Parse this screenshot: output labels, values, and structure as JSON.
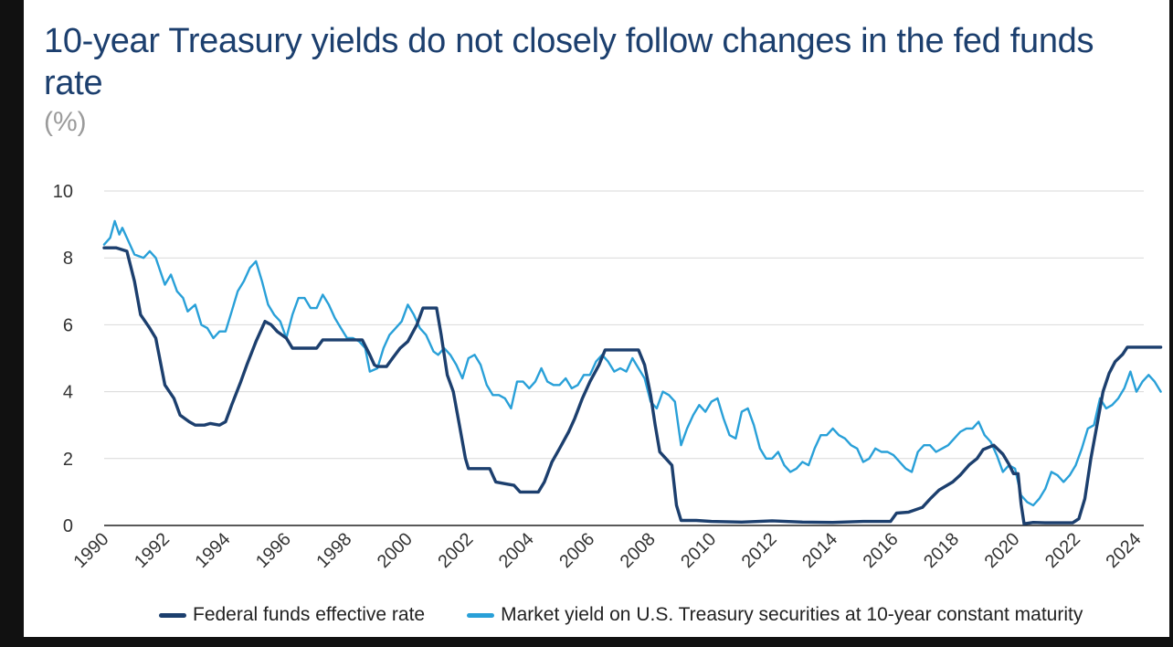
{
  "title": "10-year Treasury yields do not closely follow changes in the fed funds rate",
  "unit_label": "(%)",
  "colors": {
    "fed_funds": "#1c3f6e",
    "treasury": "#29a0d8",
    "grid": "#d9d9d9",
    "axis": "#222222"
  },
  "legend": {
    "fed_funds_label": "Federal funds effective rate",
    "treasury_label": "Market yield on U.S. Treasury securities at 10-year constant maturity"
  },
  "chart_data": {
    "type": "line",
    "title": "10-year Treasury yields do not closely follow changes in the fed funds rate",
    "ylabel": "(%)",
    "xlabel": "",
    "xlim": [
      1990,
      2024
    ],
    "ylim": [
      0,
      10
    ],
    "y_ticks": [
      0,
      2,
      4,
      6,
      8,
      10
    ],
    "x_ticks": [
      "1990",
      "1992",
      "1994",
      "1996",
      "1998",
      "2000",
      "2002",
      "2004",
      "2006",
      "2008",
      "2010",
      "2012",
      "2014",
      "2016",
      "2018",
      "2020",
      "2022",
      "2024"
    ],
    "grid": true,
    "legend_position": "bottom",
    "series": [
      {
        "name": "Federal funds effective rate",
        "color_key": "fed_funds",
        "points": [
          [
            1990.0,
            8.3
          ],
          [
            1990.4,
            8.3
          ],
          [
            1990.75,
            8.2
          ],
          [
            1991.0,
            7.3
          ],
          [
            1991.2,
            6.3
          ],
          [
            1991.5,
            5.9
          ],
          [
            1991.7,
            5.6
          ],
          [
            1992.0,
            4.2
          ],
          [
            1992.3,
            3.8
          ],
          [
            1992.5,
            3.3
          ],
          [
            1992.8,
            3.1
          ],
          [
            1993.0,
            3.0
          ],
          [
            1993.3,
            3.0
          ],
          [
            1993.5,
            3.05
          ],
          [
            1993.8,
            3.0
          ],
          [
            1994.0,
            3.1
          ],
          [
            1994.2,
            3.6
          ],
          [
            1994.5,
            4.3
          ],
          [
            1994.7,
            4.8
          ],
          [
            1995.0,
            5.5
          ],
          [
            1995.3,
            6.1
          ],
          [
            1995.5,
            6.0
          ],
          [
            1995.7,
            5.8
          ],
          [
            1996.0,
            5.6
          ],
          [
            1996.2,
            5.3
          ],
          [
            1996.5,
            5.3
          ],
          [
            1996.8,
            5.3
          ],
          [
            1997.0,
            5.3
          ],
          [
            1997.2,
            5.55
          ],
          [
            1997.5,
            5.55
          ],
          [
            1998.0,
            5.55
          ],
          [
            1998.5,
            5.55
          ],
          [
            1998.75,
            5.1
          ],
          [
            1998.9,
            4.8
          ],
          [
            1999.0,
            4.75
          ],
          [
            1999.3,
            4.75
          ],
          [
            1999.5,
            5.0
          ],
          [
            1999.75,
            5.3
          ],
          [
            2000.0,
            5.5
          ],
          [
            2000.3,
            6.0
          ],
          [
            2000.5,
            6.5
          ],
          [
            2000.75,
            6.5
          ],
          [
            2000.95,
            6.5
          ],
          [
            2001.1,
            5.7
          ],
          [
            2001.3,
            4.5
          ],
          [
            2001.5,
            4.0
          ],
          [
            2001.7,
            3.0
          ],
          [
            2001.9,
            2.0
          ],
          [
            2002.0,
            1.7
          ],
          [
            2002.3,
            1.7
          ],
          [
            2002.7,
            1.7
          ],
          [
            2002.9,
            1.3
          ],
          [
            2003.2,
            1.25
          ],
          [
            2003.5,
            1.2
          ],
          [
            2003.7,
            1.0
          ],
          [
            2004.0,
            1.0
          ],
          [
            2004.3,
            1.0
          ],
          [
            2004.5,
            1.3
          ],
          [
            2004.75,
            1.9
          ],
          [
            2005.0,
            2.3
          ],
          [
            2005.3,
            2.8
          ],
          [
            2005.5,
            3.2
          ],
          [
            2005.75,
            3.8
          ],
          [
            2006.0,
            4.3
          ],
          [
            2006.3,
            4.8
          ],
          [
            2006.5,
            5.25
          ],
          [
            2006.75,
            5.25
          ],
          [
            2007.0,
            5.25
          ],
          [
            2007.3,
            5.25
          ],
          [
            2007.6,
            5.25
          ],
          [
            2007.8,
            4.8
          ],
          [
            2008.0,
            3.9
          ],
          [
            2008.15,
            3.0
          ],
          [
            2008.3,
            2.2
          ],
          [
            2008.5,
            2.0
          ],
          [
            2008.7,
            1.8
          ],
          [
            2008.85,
            0.6
          ],
          [
            2009.0,
            0.15
          ],
          [
            2009.5,
            0.15
          ],
          [
            2010.0,
            0.12
          ],
          [
            2011.0,
            0.1
          ],
          [
            2012.0,
            0.14
          ],
          [
            2013.0,
            0.1
          ],
          [
            2014.0,
            0.09
          ],
          [
            2015.0,
            0.12
          ],
          [
            2015.9,
            0.12
          ],
          [
            2016.1,
            0.37
          ],
          [
            2016.5,
            0.4
          ],
          [
            2016.95,
            0.54
          ],
          [
            2017.2,
            0.79
          ],
          [
            2017.5,
            1.06
          ],
          [
            2017.95,
            1.3
          ],
          [
            2018.2,
            1.51
          ],
          [
            2018.5,
            1.82
          ],
          [
            2018.75,
            2.0
          ],
          [
            2018.95,
            2.27
          ],
          [
            2019.3,
            2.4
          ],
          [
            2019.6,
            2.13
          ],
          [
            2019.8,
            1.83
          ],
          [
            2019.95,
            1.55
          ],
          [
            2020.1,
            1.55
          ],
          [
            2020.2,
            0.65
          ],
          [
            2020.3,
            0.05
          ],
          [
            2020.6,
            0.09
          ],
          [
            2021.0,
            0.08
          ],
          [
            2021.5,
            0.08
          ],
          [
            2021.9,
            0.08
          ],
          [
            2022.1,
            0.2
          ],
          [
            2022.3,
            0.8
          ],
          [
            2022.5,
            2.0
          ],
          [
            2022.7,
            3.0
          ],
          [
            2022.9,
            4.0
          ],
          [
            2023.1,
            4.55
          ],
          [
            2023.3,
            4.9
          ],
          [
            2023.55,
            5.12
          ],
          [
            2023.7,
            5.33
          ],
          [
            2024.0,
            5.33
          ],
          [
            2024.8,
            5.33
          ]
        ]
      },
      {
        "name": "Market yield on U.S. Treasury securities at 10-year constant maturity",
        "color_key": "treasury",
        "points": [
          [
            1990.0,
            8.4
          ],
          [
            1990.2,
            8.6
          ],
          [
            1990.35,
            9.1
          ],
          [
            1990.5,
            8.7
          ],
          [
            1990.6,
            8.9
          ],
          [
            1990.75,
            8.6
          ],
          [
            1991.0,
            8.1
          ],
          [
            1991.3,
            8.0
          ],
          [
            1991.5,
            8.2
          ],
          [
            1991.7,
            8.0
          ],
          [
            1992.0,
            7.2
          ],
          [
            1992.2,
            7.5
          ],
          [
            1992.4,
            7.0
          ],
          [
            1992.6,
            6.8
          ],
          [
            1992.75,
            6.4
          ],
          [
            1993.0,
            6.6
          ],
          [
            1993.2,
            6.0
          ],
          [
            1993.4,
            5.9
          ],
          [
            1993.6,
            5.6
          ],
          [
            1993.8,
            5.8
          ],
          [
            1994.0,
            5.8
          ],
          [
            1994.2,
            6.4
          ],
          [
            1994.4,
            7.0
          ],
          [
            1994.6,
            7.3
          ],
          [
            1994.8,
            7.7
          ],
          [
            1995.0,
            7.9
          ],
          [
            1995.2,
            7.3
          ],
          [
            1995.4,
            6.6
          ],
          [
            1995.6,
            6.3
          ],
          [
            1995.8,
            6.1
          ],
          [
            1996.0,
            5.6
          ],
          [
            1996.2,
            6.3
          ],
          [
            1996.4,
            6.8
          ],
          [
            1996.6,
            6.8
          ],
          [
            1996.8,
            6.5
          ],
          [
            1997.0,
            6.5
          ],
          [
            1997.2,
            6.9
          ],
          [
            1997.4,
            6.6
          ],
          [
            1997.6,
            6.2
          ],
          [
            1997.8,
            5.9
          ],
          [
            1998.0,
            5.6
          ],
          [
            1998.2,
            5.6
          ],
          [
            1998.4,
            5.5
          ],
          [
            1998.6,
            5.3
          ],
          [
            1998.75,
            4.6
          ],
          [
            1999.0,
            4.7
          ],
          [
            1999.2,
            5.3
          ],
          [
            1999.4,
            5.7
          ],
          [
            1999.6,
            5.9
          ],
          [
            1999.8,
            6.1
          ],
          [
            2000.0,
            6.6
          ],
          [
            2000.2,
            6.3
          ],
          [
            2000.4,
            5.9
          ],
          [
            2000.6,
            5.7
          ],
          [
            2000.85,
            5.2
          ],
          [
            2001.0,
            5.1
          ],
          [
            2001.2,
            5.3
          ],
          [
            2001.4,
            5.1
          ],
          [
            2001.6,
            4.8
          ],
          [
            2001.8,
            4.4
          ],
          [
            2002.0,
            5.0
          ],
          [
            2002.2,
            5.1
          ],
          [
            2002.4,
            4.8
          ],
          [
            2002.6,
            4.2
          ],
          [
            2002.8,
            3.9
          ],
          [
            2003.0,
            3.9
          ],
          [
            2003.2,
            3.8
          ],
          [
            2003.4,
            3.5
          ],
          [
            2003.6,
            4.3
          ],
          [
            2003.8,
            4.3
          ],
          [
            2004.0,
            4.1
          ],
          [
            2004.2,
            4.3
          ],
          [
            2004.4,
            4.7
          ],
          [
            2004.6,
            4.3
          ],
          [
            2004.8,
            4.2
          ],
          [
            2005.0,
            4.2
          ],
          [
            2005.2,
            4.4
          ],
          [
            2005.4,
            4.1
          ],
          [
            2005.6,
            4.2
          ],
          [
            2005.8,
            4.5
          ],
          [
            2006.0,
            4.5
          ],
          [
            2006.2,
            4.9
          ],
          [
            2006.4,
            5.1
          ],
          [
            2006.6,
            4.9
          ],
          [
            2006.8,
            4.6
          ],
          [
            2007.0,
            4.7
          ],
          [
            2007.2,
            4.6
          ],
          [
            2007.4,
            5.0
          ],
          [
            2007.6,
            4.7
          ],
          [
            2007.8,
            4.4
          ],
          [
            2008.0,
            3.7
          ],
          [
            2008.2,
            3.5
          ],
          [
            2008.4,
            4.0
          ],
          [
            2008.6,
            3.9
          ],
          [
            2008.8,
            3.7
          ],
          [
            2009.0,
            2.4
          ],
          [
            2009.2,
            2.9
          ],
          [
            2009.4,
            3.3
          ],
          [
            2009.6,
            3.6
          ],
          [
            2009.8,
            3.4
          ],
          [
            2010.0,
            3.7
          ],
          [
            2010.2,
            3.8
          ],
          [
            2010.4,
            3.2
          ],
          [
            2010.6,
            2.7
          ],
          [
            2010.8,
            2.6
          ],
          [
            2011.0,
            3.4
          ],
          [
            2011.2,
            3.5
          ],
          [
            2011.4,
            3.0
          ],
          [
            2011.6,
            2.3
          ],
          [
            2011.8,
            2.0
          ],
          [
            2012.0,
            2.0
          ],
          [
            2012.2,
            2.2
          ],
          [
            2012.4,
            1.8
          ],
          [
            2012.6,
            1.6
          ],
          [
            2012.8,
            1.7
          ],
          [
            2013.0,
            1.9
          ],
          [
            2013.2,
            1.8
          ],
          [
            2013.4,
            2.3
          ],
          [
            2013.6,
            2.7
          ],
          [
            2013.8,
            2.7
          ],
          [
            2014.0,
            2.9
          ],
          [
            2014.2,
            2.7
          ],
          [
            2014.4,
            2.6
          ],
          [
            2014.6,
            2.4
          ],
          [
            2014.8,
            2.3
          ],
          [
            2015.0,
            1.9
          ],
          [
            2015.2,
            2.0
          ],
          [
            2015.4,
            2.3
          ],
          [
            2015.6,
            2.2
          ],
          [
            2015.8,
            2.2
          ],
          [
            2016.0,
            2.1
          ],
          [
            2016.2,
            1.9
          ],
          [
            2016.4,
            1.7
          ],
          [
            2016.6,
            1.6
          ],
          [
            2016.8,
            2.2
          ],
          [
            2017.0,
            2.4
          ],
          [
            2017.2,
            2.4
          ],
          [
            2017.4,
            2.2
          ],
          [
            2017.6,
            2.3
          ],
          [
            2017.8,
            2.4
          ],
          [
            2018.0,
            2.6
          ],
          [
            2018.2,
            2.8
          ],
          [
            2018.4,
            2.9
          ],
          [
            2018.6,
            2.9
          ],
          [
            2018.8,
            3.1
          ],
          [
            2019.0,
            2.7
          ],
          [
            2019.2,
            2.5
          ],
          [
            2019.4,
            2.1
          ],
          [
            2019.6,
            1.6
          ],
          [
            2019.8,
            1.8
          ],
          [
            2020.0,
            1.7
          ],
          [
            2020.2,
            0.9
          ],
          [
            2020.4,
            0.7
          ],
          [
            2020.6,
            0.6
          ],
          [
            2020.8,
            0.8
          ],
          [
            2021.0,
            1.1
          ],
          [
            2021.2,
            1.6
          ],
          [
            2021.4,
            1.5
          ],
          [
            2021.6,
            1.3
          ],
          [
            2021.8,
            1.5
          ],
          [
            2022.0,
            1.8
          ],
          [
            2022.2,
            2.3
          ],
          [
            2022.4,
            2.9
          ],
          [
            2022.6,
            3.0
          ],
          [
            2022.8,
            3.8
          ],
          [
            2023.0,
            3.5
          ],
          [
            2023.2,
            3.6
          ],
          [
            2023.4,
            3.8
          ],
          [
            2023.6,
            4.1
          ],
          [
            2023.8,
            4.6
          ],
          [
            2024.0,
            4.0
          ],
          [
            2024.2,
            4.3
          ],
          [
            2024.4,
            4.5
          ],
          [
            2024.6,
            4.3
          ],
          [
            2024.8,
            4.0
          ]
        ]
      }
    ]
  }
}
